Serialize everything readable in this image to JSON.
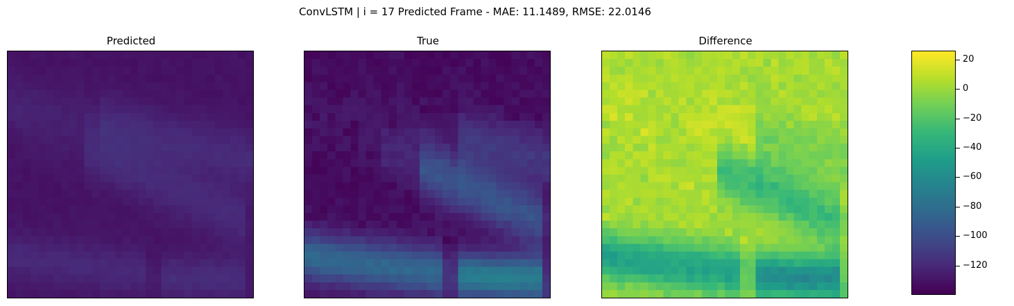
{
  "suptitle": "ConvLSTM | i = 17 Predicted Frame - MAE: 11.1489, RMSE: 22.0146",
  "chart_data": {
    "type": "heatmap",
    "title": "ConvLSTM | i = 17 Predicted Frame - MAE: 11.1489, RMSE: 22.0146",
    "grid": false,
    "colormap": "viridis",
    "grid_size": [
      32,
      32
    ],
    "panels": [
      {
        "title": "Predicted",
        "vmin": 0,
        "vmax": 200
      },
      {
        "title": "True",
        "vmin": 0,
        "vmax": 200
      },
      {
        "title": "Difference",
        "vmin": -140,
        "vmax": 26
      }
    ],
    "colorbar": {
      "range": [
        -140,
        26
      ],
      "ticks": [
        20,
        0,
        -20,
        -40,
        -60,
        -80,
        -100,
        -120
      ],
      "tick_labels": [
        "20",
        "0",
        "−20",
        "−40",
        "−60",
        "−80",
        "−100",
        "−120"
      ]
    },
    "mae": 11.1489,
    "rmse": 22.0146
  }
}
